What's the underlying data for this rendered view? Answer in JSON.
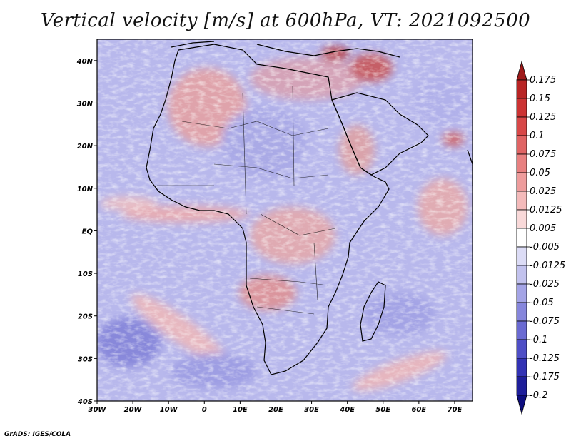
{
  "title": "Vertical velocity [m/s] at 600hPa, VT: 2021092500",
  "credit": "GrADS: IGES/COLA",
  "map": {
    "variable": "Vertical velocity",
    "units": "m/s",
    "level": "600hPa",
    "valid_time": "2021092500",
    "lon_range": [
      -30,
      75
    ],
    "lat_range": [
      -40,
      45
    ]
  },
  "axes": {
    "lat_ticks": [
      {
        "value": 40,
        "label": "40N"
      },
      {
        "value": 30,
        "label": "30N"
      },
      {
        "value": 20,
        "label": "20N"
      },
      {
        "value": 10,
        "label": "10N"
      },
      {
        "value": 0,
        "label": "EQ"
      },
      {
        "value": -10,
        "label": "10S"
      },
      {
        "value": -20,
        "label": "20S"
      },
      {
        "value": -30,
        "label": "30S"
      },
      {
        "value": -40,
        "label": "40S"
      }
    ],
    "lon_ticks": [
      {
        "value": -30,
        "label": "30W"
      },
      {
        "value": -20,
        "label": "20W"
      },
      {
        "value": -10,
        "label": "10W"
      },
      {
        "value": 0,
        "label": "0"
      },
      {
        "value": 10,
        "label": "10E"
      },
      {
        "value": 20,
        "label": "20E"
      },
      {
        "value": 30,
        "label": "30E"
      },
      {
        "value": 40,
        "label": "40E"
      },
      {
        "value": 50,
        "label": "50E"
      },
      {
        "value": 60,
        "label": "60E"
      },
      {
        "value": 70,
        "label": "70E"
      }
    ]
  },
  "colorbar": {
    "labels": [
      "0.175",
      "0.15",
      "0.125",
      "0.1",
      "0.075",
      "0.05",
      "0.025",
      "0.0125",
      "0.005",
      "-0.005",
      "-0.0125",
      "-0.025",
      "-0.05",
      "-0.075",
      "-0.1",
      "-0.125",
      "-0.175",
      "-0.2"
    ],
    "colors": [
      "#9e1a1a",
      "#b82424",
      "#cc3333",
      "#d84848",
      "#e06464",
      "#e88080",
      "#ee9c9c",
      "#f4baba",
      "#f9d9d9",
      "#ffffff",
      "#dcdcf6",
      "#c2c2ee",
      "#a4a4e6",
      "#8686dc",
      "#6a6ad2",
      "#4e4ec6",
      "#3232b4",
      "#1e1e9a",
      "#0e0e80"
    ]
  }
}
